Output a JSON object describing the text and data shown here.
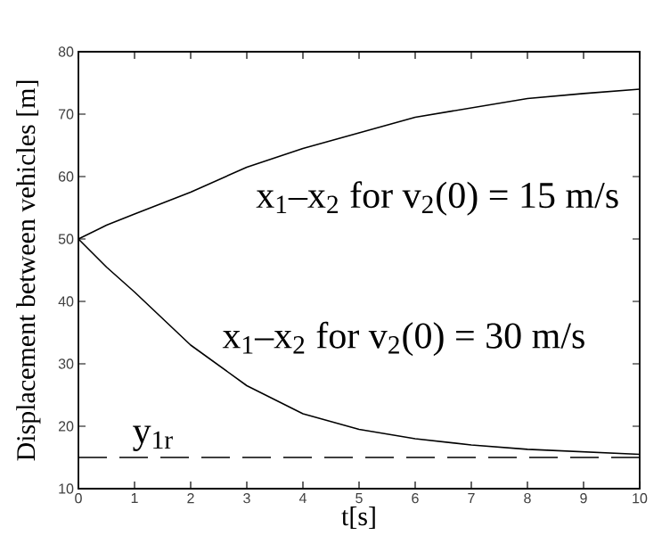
{
  "chart_data": {
    "type": "line",
    "xlabel": "t[s]",
    "ylabel": "Displacement between vehicles [m]",
    "x": [
      0,
      0.5,
      1,
      2,
      3,
      4,
      5,
      6,
      7,
      8,
      9,
      10
    ],
    "series": [
      {
        "color": "#000000",
        "values": [
          50,
          52.2,
          54,
          57.5,
          61.5,
          64.5,
          67,
          69.5,
          71,
          72.5,
          73.3,
          74
        ]
      },
      {
        "color": "#000000",
        "values": [
          50,
          45.5,
          41.5,
          33,
          26.5,
          22,
          19.5,
          18,
          17,
          16.3,
          15.9,
          15.5
        ]
      }
    ],
    "annotations": [
      "x$_{1}$–x$_{2}$  for v$_{2}$(0) = 15 m/s",
      "x$_{1}$–x$_{2}$  for v$_{2}$(0) = 30 m/s"
    ],
    "ref_lines": [
      {
        "axis": "y",
        "value": 15,
        "label": "y$_{1r}$",
        "color": "#000000",
        "line_style": "dashed"
      }
    ],
    "xlim": [
      0,
      10
    ],
    "ylim": [
      10,
      80
    ],
    "xticks": [
      0,
      1,
      2,
      3,
      4,
      5,
      6,
      7,
      8,
      9,
      10
    ],
    "yticks": [
      10,
      20,
      30,
      40,
      50,
      60,
      70,
      80
    ],
    "grid": false,
    "marker": "none",
    "line_style": "solid"
  }
}
